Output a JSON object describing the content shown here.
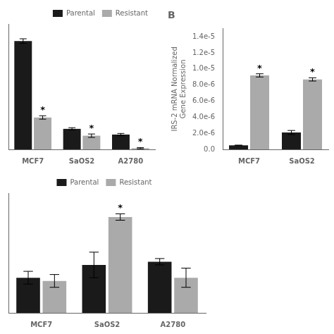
{
  "chart_data": [
    {
      "type": "bar",
      "categories": [
        "MCF7",
        "SaOS2",
        "A2780"
      ],
      "series": [
        {
          "name": "Parental",
          "color": "#1a1a1a",
          "values": [
            0.95,
            0.18,
            0.13
          ],
          "errors": [
            0.02,
            0.01,
            0.01
          ]
        },
        {
          "name": "Resistant",
          "color": "#aaaaaa",
          "values": [
            0.28,
            0.12,
            0.01
          ],
          "errors": [
            0.015,
            0.015,
            0.005
          ]
        }
      ],
      "annotations": [
        {
          "text": "*",
          "x": "MCF7",
          "series": "Resistant"
        },
        {
          "text": "*",
          "x": "SaOS2",
          "series": "Resistant"
        },
        {
          "text": "*",
          "x": "A2780",
          "series": "Resistant"
        }
      ],
      "ylim": [
        0,
        1.1
      ],
      "tick_labels": "x",
      "grid": false,
      "legend": "upper right"
    },
    {
      "type": "bar",
      "title": "B",
      "categories": [
        "MCF7",
        "SaOS2"
      ],
      "series": [
        {
          "name": "Parental",
          "color": "#1a1a1a",
          "values": [
            5e-07,
            2.1e-06
          ],
          "errors": [
            3e-08,
            2.5e-07
          ]
        },
        {
          "name": "Resistant",
          "color": "#aaaaaa",
          "values": [
            9.2e-06,
            8.7e-06
          ],
          "errors": [
            2e-07,
            2e-07
          ]
        }
      ],
      "annotations": [
        {
          "text": "*",
          "x": "MCF7",
          "series": "Resistant"
        },
        {
          "text": "*",
          "x": "SaOS2",
          "series": "Resistant"
        }
      ],
      "y_label": "IRS-2 mRNA Normalized\nGene Expression",
      "ylim": [
        0,
        1.5e-05
      ],
      "yticks": [
        {
          "value": 0.0,
          "label": "0.0"
        },
        {
          "value": 2e-06,
          "label": "2.0e-6"
        },
        {
          "value": 4e-06,
          "label": "4.0e-6"
        },
        {
          "value": 6e-06,
          "label": "6.0e-6"
        },
        {
          "value": 8e-06,
          "label": "8.0e-6"
        },
        {
          "value": 1e-05,
          "label": "1.0e-5"
        },
        {
          "value": 1.2e-05,
          "label": "1.2e-5"
        },
        {
          "value": 1.4e-05,
          "label": "1.4e-5"
        }
      ],
      "grid": false
    },
    {
      "type": "bar",
      "categories": [
        "MCF7",
        "SaOS2",
        "A2780"
      ],
      "series": [
        {
          "name": "Parental",
          "color": "#1a1a1a",
          "values": [
            0.22,
            0.3,
            0.32
          ],
          "errors": [
            0.04,
            0.08,
            0.02
          ]
        },
        {
          "name": "Resistant",
          "color": "#aaaaaa",
          "values": [
            0.2,
            0.6,
            0.22
          ],
          "errors": [
            0.04,
            0.02,
            0.06
          ]
        }
      ],
      "annotations": [
        {
          "text": "*",
          "x": "SaOS2",
          "series": "Resistant"
        }
      ],
      "ylim": [
        0,
        0.75
      ],
      "tick_labels": "x",
      "grid": false,
      "legend": "upper center"
    }
  ]
}
